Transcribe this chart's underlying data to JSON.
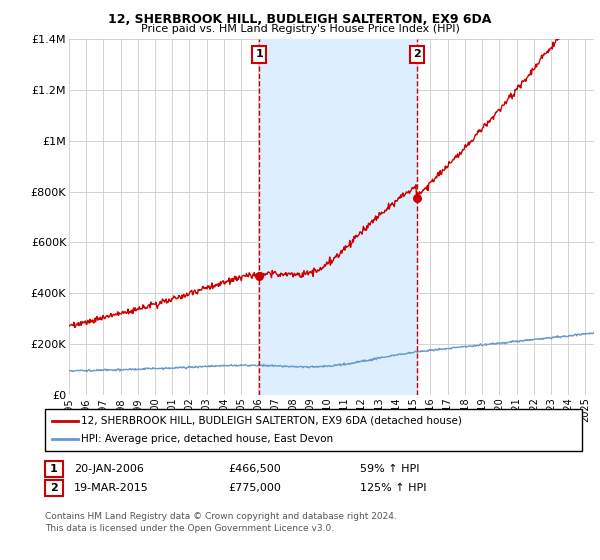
{
  "title_line1": "12, SHERBROOK HILL, BUDLEIGH SALTERTON, EX9 6DA",
  "title_line2": "Price paid vs. HM Land Registry's House Price Index (HPI)",
  "background_color": "#ffffff",
  "plot_bg_color": "#ffffff",
  "grid_color": "#cccccc",
  "shade_color": "#ddeeff",
  "hpi_color": "#6699cc",
  "price_color": "#cc0000",
  "marker_color": "#cc0000",
  "vline_color": "#cc0000",
  "sale1_x": 2006.05,
  "sale1_y": 466500,
  "sale2_x": 2015.21,
  "sale2_y": 775000,
  "legend_line1": "12, SHERBROOK HILL, BUDLEIGH SALTERTON, EX9 6DA (detached house)",
  "legend_line2": "HPI: Average price, detached house, East Devon",
  "annotation1_date": "20-JAN-2006",
  "annotation1_price": "£466,500",
  "annotation1_hpi": "59% ↑ HPI",
  "annotation2_date": "19-MAR-2015",
  "annotation2_price": "£775,000",
  "annotation2_hpi": "125% ↑ HPI",
  "footnote": "Contains HM Land Registry data © Crown copyright and database right 2024.\nThis data is licensed under the Open Government Licence v3.0.",
  "ylim": [
    0,
    1400000
  ],
  "xlim_start": 1995.0,
  "xlim_end": 2025.5
}
